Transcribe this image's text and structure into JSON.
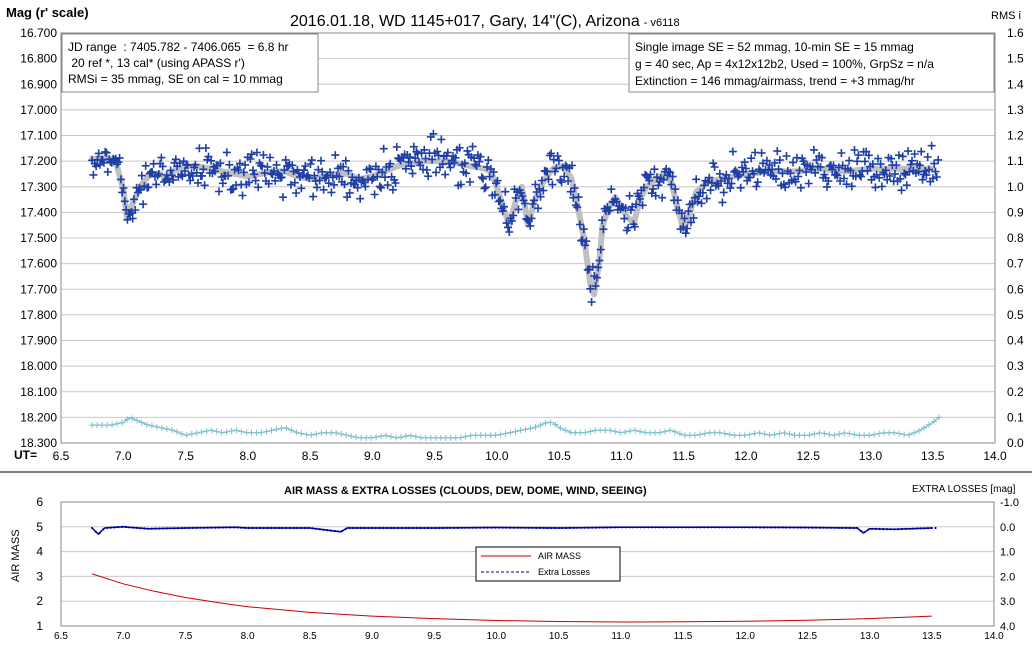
{
  "chart_data": [
    {
      "type": "scatter",
      "title": "2016.01.18, WD 1145+017, Gary, 14\"(C), Arizona",
      "version": "- v6118",
      "ylabel": "Mag (r' scale)",
      "y2label": "RMS i",
      "xlabel": "UT=",
      "xlim": [
        6.5,
        14.0
      ],
      "ylim": [
        16.7,
        18.3
      ],
      "y2lim": [
        0.0,
        1.6
      ],
      "xticks": [
        "6.5",
        "7.0",
        "7.5",
        "8.0",
        "8.5",
        "9.0",
        "9.5",
        "10.0",
        "10.5",
        "11.0",
        "11.5",
        "12.0",
        "12.5",
        "13.0",
        "13.5",
        "14.0"
      ],
      "yticks": [
        "16.700",
        "16.800",
        "16.900",
        "17.000",
        "17.100",
        "17.200",
        "17.300",
        "17.400",
        "17.500",
        "17.600",
        "17.700",
        "17.800",
        "17.900",
        "18.000",
        "18.100",
        "18.200",
        "18.300"
      ],
      "y2ticks": [
        "1.6",
        "1.5",
        "1.4",
        "1.3",
        "1.2",
        "1.1",
        "1.0",
        "0.9",
        "0.8",
        "0.7",
        "0.6",
        "0.5",
        "0.4",
        "0.3",
        "0.2",
        "0.1",
        "0.0"
      ],
      "grid": true,
      "annotations": {
        "left_box": [
          "JD range  : 7405.782 - 7406.065  = 6.8 hr",
          " 20 ref *, 13 cal* (using APASS r')",
          "RMSi = 35 mmag, SE on cal = 10 mmag"
        ],
        "right_box": [
          "Single image SE = 52 mmag, 10-min SE = 15 mmag",
          "g = 40 sec, Ap = 4x12x12b2, Used = 100%, GrpSz = n/a",
          "Extinction = 146 mmag/airmass, trend = +3 mmag/hr"
        ]
      },
      "series": [
        {
          "role": "model-fit",
          "color": "#c0c0c0",
          "x": [
            6.75,
            6.9,
            6.95,
            7.0,
            7.03,
            7.08,
            7.15,
            7.2,
            7.25,
            7.3,
            7.35,
            7.4,
            7.5,
            7.6,
            7.7,
            7.8,
            7.9,
            8.0,
            8.1,
            8.2,
            8.3,
            8.4,
            8.5,
            8.6,
            8.7,
            8.8,
            8.9,
            9.0,
            9.1,
            9.2,
            9.3,
            9.4,
            9.5,
            9.6,
            9.7,
            9.8,
            9.9,
            9.95,
            10.0,
            10.05,
            10.1,
            10.15,
            10.2,
            10.25,
            10.3,
            10.35,
            10.4,
            10.45,
            10.5,
            10.55,
            10.6,
            10.65,
            10.7,
            10.75,
            10.78,
            10.82,
            10.85,
            10.9,
            10.95,
            11.0,
            11.05,
            11.1,
            11.15,
            11.2,
            11.25,
            11.3,
            11.35,
            11.4,
            11.45,
            11.5,
            11.55,
            11.6,
            11.7,
            11.8,
            11.9,
            12.0,
            12.2,
            12.4,
            12.6,
            12.8,
            13.0,
            13.2,
            13.4,
            13.5
          ],
          "y": [
            17.19,
            17.19,
            17.22,
            17.31,
            17.42,
            17.36,
            17.29,
            17.26,
            17.25,
            17.25,
            17.27,
            17.24,
            17.22,
            17.22,
            17.23,
            17.24,
            17.25,
            17.26,
            17.25,
            17.24,
            17.24,
            17.26,
            17.27,
            17.26,
            17.25,
            17.25,
            17.27,
            17.26,
            17.24,
            17.22,
            17.21,
            17.2,
            17.2,
            17.2,
            17.21,
            17.22,
            17.23,
            17.24,
            17.3,
            17.38,
            17.45,
            17.36,
            17.3,
            17.45,
            17.36,
            17.3,
            17.26,
            17.23,
            17.22,
            17.23,
            17.27,
            17.38,
            17.5,
            17.68,
            17.72,
            17.6,
            17.45,
            17.38,
            17.34,
            17.38,
            17.42,
            17.44,
            17.35,
            17.3,
            17.28,
            17.26,
            17.25,
            17.28,
            17.38,
            17.47,
            17.4,
            17.32,
            17.28,
            17.27,
            17.26,
            17.25,
            17.24,
            17.24,
            17.23,
            17.24,
            17.23,
            17.23,
            17.23,
            17.23
          ]
        },
        {
          "role": "rms-scatter",
          "color": "#7fbfcf",
          "x": [
            6.75,
            6.9,
            7.0,
            7.05,
            7.1,
            7.2,
            7.3,
            7.4,
            7.5,
            7.6,
            7.7,
            7.8,
            7.9,
            8.0,
            8.1,
            8.2,
            8.3,
            8.4,
            8.5,
            8.6,
            8.7,
            8.8,
            8.9,
            9.0,
            9.1,
            9.2,
            9.3,
            9.4,
            9.5,
            9.6,
            9.7,
            9.8,
            9.9,
            10.0,
            10.1,
            10.2,
            10.3,
            10.4,
            10.45,
            10.5,
            10.6,
            10.7,
            10.8,
            10.9,
            11.0,
            11.1,
            11.2,
            11.3,
            11.4,
            11.5,
            11.6,
            11.7,
            11.8,
            11.9,
            12.0,
            12.1,
            12.2,
            12.3,
            12.4,
            12.5,
            12.6,
            12.7,
            12.8,
            12.9,
            13.0,
            13.1,
            13.2,
            13.3,
            13.4,
            13.5,
            13.55
          ],
          "y2": [
            0.07,
            0.07,
            0.08,
            0.1,
            0.09,
            0.07,
            0.06,
            0.05,
            0.03,
            0.04,
            0.05,
            0.04,
            0.05,
            0.04,
            0.04,
            0.05,
            0.06,
            0.04,
            0.03,
            0.04,
            0.04,
            0.03,
            0.02,
            0.02,
            0.03,
            0.02,
            0.03,
            0.02,
            0.02,
            0.02,
            0.02,
            0.03,
            0.03,
            0.03,
            0.04,
            0.05,
            0.06,
            0.08,
            0.08,
            0.06,
            0.04,
            0.04,
            0.05,
            0.05,
            0.04,
            0.05,
            0.04,
            0.04,
            0.05,
            0.03,
            0.03,
            0.04,
            0.04,
            0.03,
            0.03,
            0.04,
            0.03,
            0.04,
            0.03,
            0.03,
            0.04,
            0.03,
            0.04,
            0.03,
            0.03,
            0.04,
            0.04,
            0.03,
            0.05,
            0.08,
            0.1
          ]
        }
      ]
    },
    {
      "type": "line",
      "title": "AIR MASS & EXTRA LOSSES (CLOUDS, DEW, DOME, WIND, SEEING)",
      "ylabel": "AIR MASS",
      "y2label": "EXTRA LOSSES [mag]",
      "xlim": [
        6.5,
        14.0
      ],
      "ylim": [
        1,
        6
      ],
      "y2lim": [
        -1.0,
        4.0
      ],
      "xticks": [
        "6.5",
        "7.0",
        "7.5",
        "8.0",
        "8.5",
        "9.0",
        "9.5",
        "10.0",
        "10.5",
        "11.0",
        "11.5",
        "12.0",
        "12.5",
        "13.0",
        "13.5",
        "14.0"
      ],
      "yticks": [
        "1",
        "2",
        "3",
        "4",
        "5",
        "6"
      ],
      "y2ticks": [
        "4.0",
        "3.0",
        "2.0",
        "1.0",
        "0.0",
        "-1.0"
      ],
      "legend": "center",
      "series": [
        {
          "name": "AIR MASS",
          "color": "#cc0000",
          "x": [
            6.75,
            7.0,
            7.25,
            7.5,
            7.75,
            8.0,
            8.5,
            9.0,
            9.5,
            10.0,
            10.5,
            11.0,
            11.5,
            12.0,
            12.5,
            13.0,
            13.5
          ],
          "y": [
            3.1,
            2.7,
            2.4,
            2.15,
            1.95,
            1.78,
            1.55,
            1.4,
            1.3,
            1.22,
            1.18,
            1.16,
            1.17,
            1.19,
            1.23,
            1.3,
            1.4
          ]
        },
        {
          "name": "Extra Losses",
          "color": "#0000aa",
          "x": [
            6.75,
            6.8,
            6.85,
            7.0,
            7.2,
            7.5,
            7.9,
            8.0,
            8.5,
            8.75,
            8.8,
            9.0,
            9.5,
            10.0,
            10.5,
            11.0,
            11.5,
            12.0,
            12.5,
            12.9,
            12.95,
            13.0,
            13.2,
            13.5
          ],
          "y2": [
            0.05,
            0.3,
            0.05,
            0.0,
            0.08,
            0.05,
            0.02,
            0.05,
            0.05,
            0.2,
            0.05,
            0.05,
            0.05,
            0.03,
            0.05,
            0.02,
            0.02,
            0.02,
            0.03,
            0.05,
            0.25,
            0.08,
            0.1,
            0.05
          ]
        }
      ]
    }
  ]
}
